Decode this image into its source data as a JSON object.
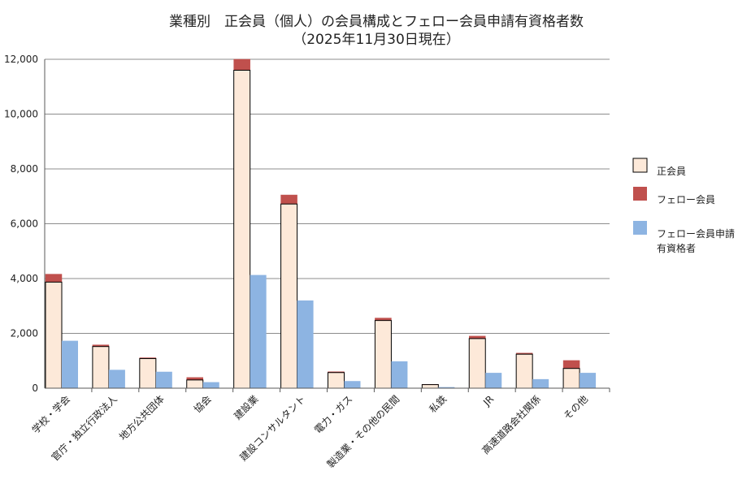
{
  "chart_data": {
    "type": "bar",
    "title": "業種別　正会員（個人）の会員構成とフェロー会員申請有資格者数",
    "subtitle": "（2025年11月30日現在）",
    "xlabel": "",
    "ylabel": "",
    "ylim": [
      0,
      12000
    ],
    "yticks": [
      "0",
      "2,000",
      "4,000",
      "6,000",
      "8,000",
      "10,000",
      "12,000"
    ],
    "grid": true,
    "legend_position": "right",
    "categories": [
      "学校・学会",
      "官庁・独立行政法人",
      "地方公共団体",
      "協会",
      "建設業",
      "建設コンサルタント",
      "電力・ガス",
      "製造業・その他の民間",
      "私鉄",
      "JR",
      "高速道路会社関係",
      "その他"
    ],
    "series": [
      {
        "name": "正会員",
        "color": "#fde9d9",
        "stack": "members",
        "values": [
          3870,
          1520,
          1080,
          300,
          11600,
          6720,
          570,
          2470,
          130,
          1810,
          1240,
          720
        ]
      },
      {
        "name": "フェロー会員",
        "color": "#c0504d",
        "stack": "members",
        "values": [
          290,
          60,
          30,
          90,
          400,
          330,
          30,
          90,
          10,
          90,
          40,
          290
        ]
      },
      {
        "name": "フェロー会員申請",
        "name_line2": "有資格者",
        "color": "#8db4e2",
        "stack": "eligible",
        "values": [
          1730,
          670,
          600,
          220,
          4130,
          3200,
          260,
          980,
          40,
          560,
          330,
          560
        ]
      }
    ]
  }
}
